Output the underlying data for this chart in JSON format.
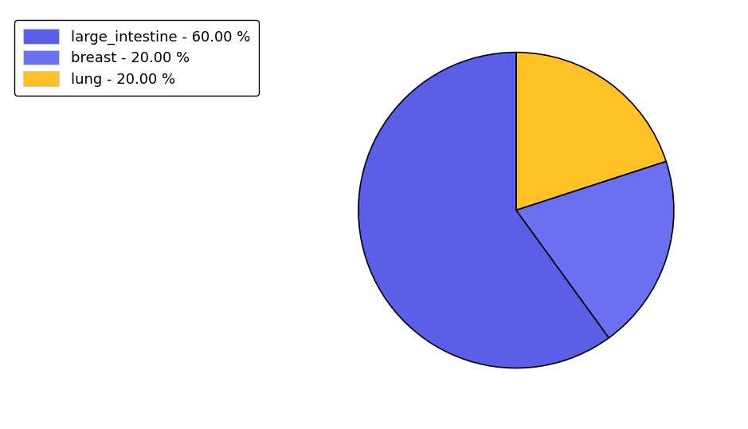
{
  "labels": [
    "lung",
    "breast",
    "large_intestine"
  ],
  "values": [
    20.0,
    20.0,
    60.0
  ],
  "colors": [
    "#FFC125",
    "#6B70F0",
    "#5B5EE8"
  ],
  "legend_labels": [
    "large_intestine - 60.00 %",
    "breast - 20.00 %",
    "lung - 20.00 %"
  ],
  "legend_colors": [
    "#5B5EE8",
    "#6B70F0",
    "#FFC125"
  ],
  "startangle": 90,
  "background_color": "#ffffff",
  "figsize": [
    9.39,
    5.38
  ],
  "dpi": 100,
  "legend_fontsize": 13
}
